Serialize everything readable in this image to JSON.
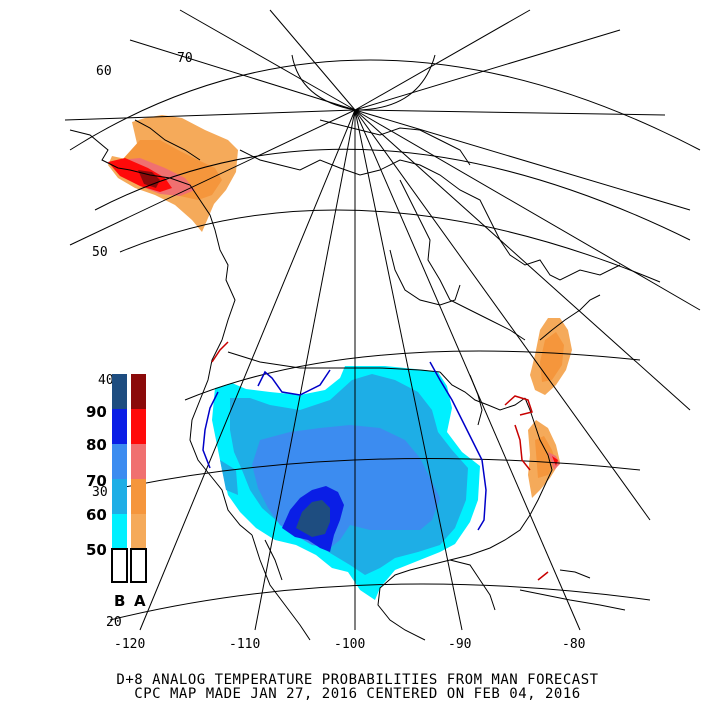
{
  "caption": {
    "line1": "D+8 ANALOG TEMPERATURE PROBABILITIES FROM MAN FORECAST",
    "line2": "CPC MAP MADE JAN 27, 2016 CENTERED ON FEB 04, 2016"
  },
  "latitude_labels": [
    "70",
    "60",
    "50",
    "40",
    "30",
    "20"
  ],
  "longitude_labels": [
    "-120",
    "-110",
    "-100",
    "-90",
    "-80"
  ],
  "legend": {
    "levels": [
      "90",
      "80",
      "70",
      "60",
      "50"
    ],
    "below_label": "B",
    "above_label": "A",
    "below_colors": [
      "#1e4d80",
      "#0a1ee6",
      "#3c8cf0",
      "#1eaee6",
      "#00f0ff"
    ],
    "above_colors": [
      "#8b0a0a",
      "#ff0a0a",
      "#f07070",
      "#f5963c",
      "#f5aa5a"
    ]
  }
}
